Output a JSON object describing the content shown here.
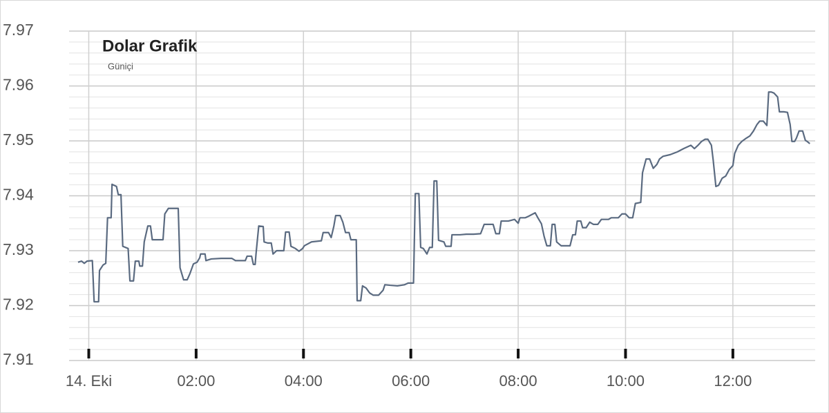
{
  "chart_data": {
    "type": "line",
    "title": "Dolar Grafik",
    "subtitle": "Güniçi",
    "color": "#5a6a80",
    "grid": true,
    "xlim": [
      -22,
      812
    ],
    "ylim": [
      7.91,
      7.97
    ],
    "xticks": [
      {
        "value": 0,
        "label": "14. Eki"
      },
      {
        "value": 120,
        "label": "02:00"
      },
      {
        "value": 240,
        "label": "04:00"
      },
      {
        "value": 360,
        "label": "06:00"
      },
      {
        "value": 480,
        "label": "08:00"
      },
      {
        "value": 600,
        "label": "10:00"
      },
      {
        "value": 720,
        "label": "12:00"
      }
    ],
    "yticks": [
      7.91,
      7.92,
      7.93,
      7.94,
      7.95,
      7.96,
      7.97
    ],
    "x": [
      -12,
      -8,
      -5,
      -2,
      4,
      6,
      11,
      12,
      16,
      19,
      21,
      25,
      26,
      31,
      33,
      36,
      38,
      44,
      46,
      50,
      52,
      56,
      57,
      60,
      62,
      66,
      69,
      71,
      76,
      83,
      85,
      89,
      97,
      100,
      102,
      106,
      110,
      113,
      117,
      121,
      124,
      125,
      130,
      131,
      137,
      148,
      160,
      164,
      175,
      177,
      182,
      184,
      186,
      187,
      190,
      195,
      196,
      200,
      204,
      206,
      210,
      218,
      220,
      224,
      226,
      231,
      235,
      239,
      241,
      249,
      260,
      262,
      268,
      271,
      274,
      276,
      281,
      284,
      287,
      291,
      293,
      299,
      300,
      304,
      306,
      310,
      314,
      318,
      324,
      329,
      331,
      337,
      345,
      353,
      357,
      363,
      365,
      369,
      371,
      374,
      378,
      381,
      384,
      386,
      389,
      391,
      397,
      399,
      405,
      406,
      415,
      422,
      430,
      438,
      442,
      452,
      455,
      459,
      461,
      469,
      476,
      480,
      482,
      488,
      492,
      499,
      502,
      506,
      509,
      512,
      516,
      518,
      521,
      523,
      528,
      538,
      541,
      544,
      546,
      550,
      552,
      556,
      560,
      564,
      569,
      573,
      581,
      584,
      592,
      596,
      600,
      604,
      608,
      611,
      617,
      619,
      623,
      627,
      631,
      635,
      638,
      642,
      650,
      658,
      665,
      673,
      677,
      681,
      685,
      689,
      692,
      696,
      698,
      701,
      704,
      708,
      712,
      716,
      720,
      722,
      726,
      730,
      735,
      739,
      743,
      747,
      750,
      754,
      758,
      760,
      763,
      766,
      770,
      772,
      777,
      781,
      784,
      786,
      789,
      791,
      794,
      798,
      801,
      803,
      806
    ],
    "values": [
      7.9279,
      7.9281,
      7.9277,
      7.9281,
      7.9282,
      7.9207,
      7.9207,
      7.9264,
      7.9274,
      7.9277,
      7.936,
      7.936,
      7.9421,
      7.9417,
      7.9402,
      7.9402,
      7.9308,
      7.9304,
      7.9245,
      7.9245,
      7.9281,
      7.9281,
      7.9272,
      7.9272,
      7.9316,
      7.9345,
      7.9345,
      7.932,
      7.932,
      7.932,
      7.9367,
      7.9377,
      7.9377,
      7.9377,
      7.9269,
      7.9247,
      7.9247,
      7.9258,
      7.9276,
      7.9279,
      7.9287,
      7.9294,
      7.9294,
      7.9282,
      7.9285,
      7.9286,
      7.9286,
      7.9282,
      7.9282,
      7.929,
      7.929,
      7.9275,
      7.9275,
      7.9295,
      7.9345,
      7.9344,
      7.9316,
      7.9314,
      7.9314,
      7.9294,
      7.93,
      7.93,
      7.9334,
      7.9334,
      7.9308,
      7.9304,
      7.9299,
      7.9304,
      7.9309,
      7.9316,
      7.9318,
      7.9333,
      7.9333,
      7.9324,
      7.9345,
      7.9364,
      7.9364,
      7.9352,
      7.9333,
      7.9333,
      7.932,
      7.932,
      7.9209,
      7.9209,
      7.9236,
      7.9232,
      7.9223,
      7.9219,
      7.9219,
      7.9228,
      7.9238,
      7.9237,
      7.9236,
      7.9238,
      7.9241,
      7.9241,
      7.9404,
      7.9404,
      7.9306,
      7.9304,
      7.9294,
      7.9306,
      7.9306,
      7.9427,
      7.9427,
      7.9319,
      7.9316,
      7.9308,
      7.9308,
      7.9329,
      7.9329,
      7.933,
      7.933,
      7.9331,
      7.9348,
      7.9348,
      7.9331,
      7.9331,
      7.9354,
      7.9354,
      7.9357,
      7.935,
      7.936,
      7.936,
      7.9363,
      7.9369,
      7.936,
      7.9349,
      7.9326,
      7.9309,
      7.9309,
      7.9348,
      7.9348,
      7.9316,
      7.9309,
      7.9309,
      7.9329,
      7.9329,
      7.9354,
      7.9354,
      7.9342,
      7.9342,
      7.9352,
      7.9348,
      7.9348,
      7.9357,
      7.9357,
      7.936,
      7.936,
      7.9367,
      7.9367,
      7.936,
      7.936,
      7.9386,
      7.9388,
      7.9442,
      7.9467,
      7.9467,
      7.945,
      7.9457,
      7.9467,
      7.9472,
      7.9475,
      7.948,
      7.9486,
      7.9492,
      7.9486,
      7.9492,
      7.9499,
      7.9503,
      7.9503,
      7.9492,
      7.9465,
      7.9417,
      7.9419,
      7.9432,
      7.9436,
      7.9448,
      7.9455,
      7.9477,
      7.9492,
      7.9499,
      7.9505,
      7.9509,
      7.9518,
      7.953,
      7.9536,
      7.9536,
      7.9528,
      7.9589,
      7.9589,
      7.9587,
      7.958,
      7.9553,
      7.9553,
      7.9552,
      7.953,
      7.9499,
      7.9499,
      7.9505,
      7.9518,
      7.9518,
      7.9501,
      7.9499,
      7.9495
    ]
  }
}
